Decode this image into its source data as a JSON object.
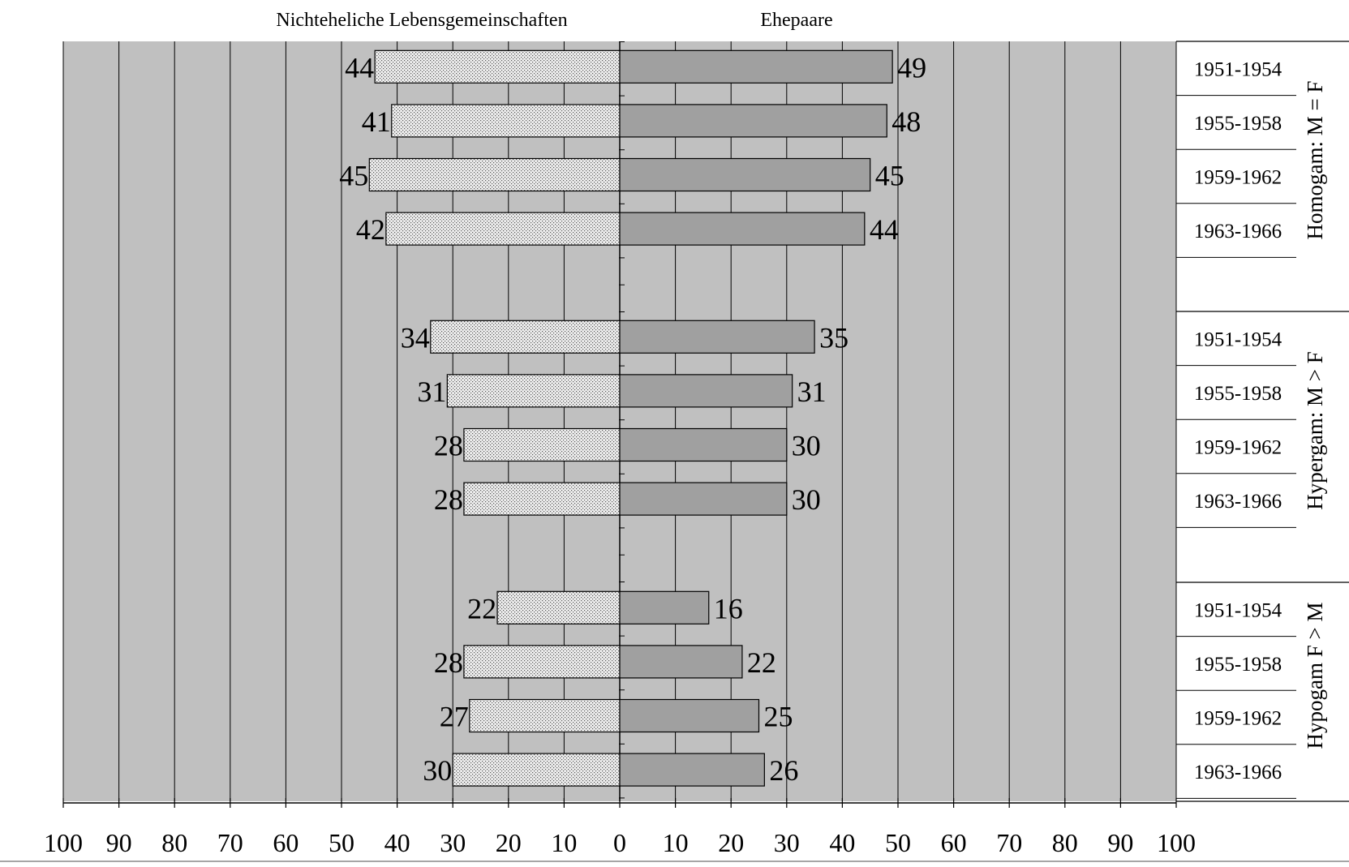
{
  "chart_data": {
    "type": "bar",
    "orientation": "horizontal-butterfly",
    "left_header": "Nichteheliche Lebensgemeinschaften",
    "right_header": "Ehepaare",
    "x_ticks_left": [
      "100",
      "90",
      "80",
      "70",
      "60",
      "50",
      "40",
      "30",
      "20",
      "10"
    ],
    "x_ticks_right": [
      "0",
      "10",
      "20",
      "30",
      "40",
      "50",
      "60",
      "70",
      "80",
      "90",
      "100"
    ],
    "xlim": [
      0,
      100
    ],
    "grid": true,
    "colors": {
      "plot_background": "#c0c0c0",
      "left_bar_fill": "#eeeeee",
      "left_bar_dots": "#555555",
      "right_bar_fill": "#a0a0a0",
      "bar_stroke": "#000000",
      "grid": "#000000"
    },
    "groups": [
      {
        "label": "Homogam: M = F",
        "periods": [
          "1951-1954",
          "1955-1958",
          "1959-1962",
          "1963-1966"
        ],
        "left_values": [
          44,
          41,
          45,
          42
        ],
        "right_values": [
          49,
          48,
          45,
          44
        ],
        "left_labels": [
          "44",
          "41",
          "45",
          "42"
        ],
        "right_labels": [
          "49",
          "48",
          "45",
          "44"
        ]
      },
      {
        "label": "Hypergam: M > F",
        "periods": [
          "1951-1954",
          "1955-1958",
          "1959-1962",
          "1963-1966"
        ],
        "left_values": [
          34,
          31,
          28,
          28
        ],
        "right_values": [
          35,
          31,
          30,
          30
        ],
        "left_labels": [
          "34",
          "31",
          "28",
          "28"
        ],
        "right_labels": [
          "35",
          "31",
          "30",
          "30"
        ]
      },
      {
        "label": "Hypogam F > M",
        "periods": [
          "1951-1954",
          "1955-1958",
          "1959-1962",
          "1963-1966"
        ],
        "left_values": [
          22,
          28,
          27,
          30
        ],
        "right_values": [
          16,
          22,
          25,
          26
        ],
        "left_labels": [
          "22",
          "28",
          "27",
          "30"
        ],
        "right_labels": [
          "16",
          "22",
          "25",
          "26"
        ]
      }
    ]
  }
}
